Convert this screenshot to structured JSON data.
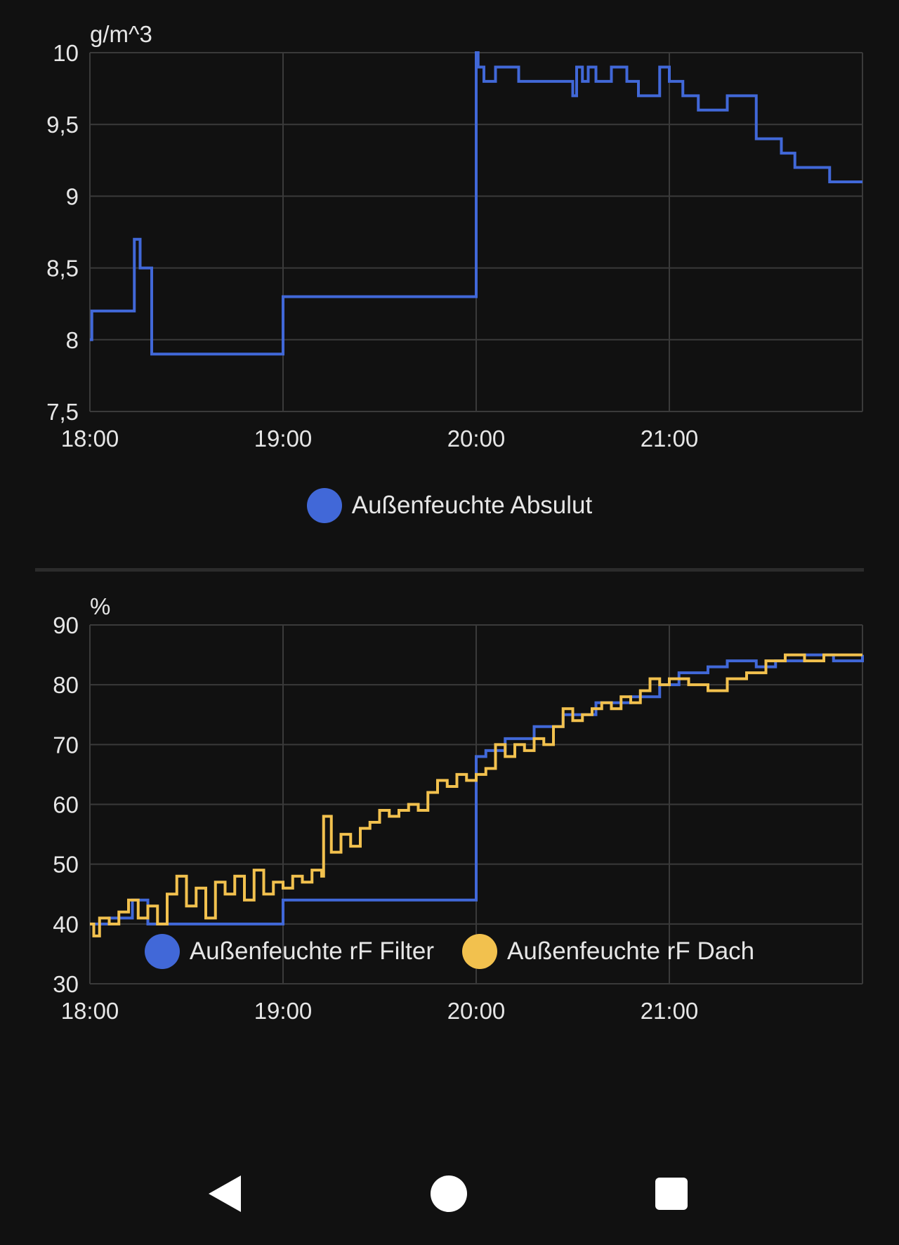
{
  "colors": {
    "background": "#111111",
    "grid": "#3a3a3a",
    "text": "#e6e6e6",
    "blue": "#4168d8",
    "yellow": "#f2c14e"
  },
  "chart_data": [
    {
      "type": "line",
      "unit": "g/m^3",
      "ylim": [
        7.5,
        10
      ],
      "y_ticks": [
        "10",
        "9,5",
        "9",
        "8,5",
        "8",
        "7,5"
      ],
      "x_ticks": [
        "18:00",
        "19:00",
        "20:00",
        "21:00"
      ],
      "xlim_hours": [
        0,
        4
      ],
      "grid": true,
      "legend_position": "bottom-center",
      "series": [
        {
          "name": "Außenfeuchte Absulut",
          "color": "#4168d8",
          "step": true,
          "x": [
            0.0,
            0.01,
            0.23,
            0.26,
            0.32,
            1.0,
            2.0,
            2.01,
            2.04,
            2.1,
            2.22,
            2.3,
            2.5,
            2.52,
            2.55,
            2.58,
            2.62,
            2.7,
            2.78,
            2.84,
            2.95,
            3.0,
            3.07,
            3.15,
            3.3,
            3.45,
            3.58,
            3.65,
            3.83,
            4.0
          ],
          "y": [
            8.0,
            8.2,
            8.7,
            8.5,
            7.9,
            8.3,
            10.0,
            9.9,
            9.8,
            9.9,
            9.8,
            9.8,
            9.7,
            9.9,
            9.8,
            9.9,
            9.8,
            9.9,
            9.8,
            9.7,
            9.9,
            9.8,
            9.7,
            9.6,
            9.7,
            9.4,
            9.3,
            9.2,
            9.1,
            9.1
          ]
        }
      ]
    },
    {
      "type": "line",
      "unit": "%",
      "ylim": [
        30,
        90
      ],
      "y_ticks": [
        "90",
        "80",
        "70",
        "60",
        "50",
        "40",
        "30"
      ],
      "x_ticks": [
        "18:00",
        "19:00",
        "20:00",
        "21:00"
      ],
      "xlim_hours": [
        0,
        4
      ],
      "grid": true,
      "legend_position": "bottom-center",
      "series": [
        {
          "name": "Außenfeuchte rF Filter",
          "color": "#4168d8",
          "step": true,
          "x": [
            0.0,
            0.1,
            0.22,
            0.3,
            1.0,
            2.0,
            2.05,
            2.15,
            2.3,
            2.45,
            2.62,
            2.8,
            2.95,
            3.05,
            3.2,
            3.3,
            3.45,
            3.55,
            3.7,
            3.85,
            4.0
          ],
          "y": [
            40,
            41,
            44,
            40,
            44,
            68,
            69,
            71,
            73,
            75,
            77,
            78,
            80,
            82,
            83,
            84,
            83,
            84,
            85,
            84,
            85
          ]
        },
        {
          "name": "Außenfeuchte rF Dach",
          "color": "#f2c14e",
          "step": true,
          "x": [
            0.0,
            0.02,
            0.05,
            0.1,
            0.15,
            0.2,
            0.25,
            0.3,
            0.35,
            0.4,
            0.45,
            0.5,
            0.55,
            0.6,
            0.65,
            0.7,
            0.75,
            0.8,
            0.85,
            0.9,
            0.95,
            1.0,
            1.05,
            1.1,
            1.15,
            1.2,
            1.21,
            1.25,
            1.3,
            1.35,
            1.4,
            1.45,
            1.5,
            1.55,
            1.6,
            1.65,
            1.7,
            1.75,
            1.8,
            1.85,
            1.9,
            1.95,
            2.0,
            2.05,
            2.1,
            2.15,
            2.2,
            2.25,
            2.3,
            2.35,
            2.4,
            2.45,
            2.5,
            2.55,
            2.6,
            2.65,
            2.7,
            2.75,
            2.8,
            2.85,
            2.9,
            2.95,
            3.0,
            3.1,
            3.2,
            3.3,
            3.4,
            3.5,
            3.6,
            3.7,
            3.8,
            4.0
          ],
          "y": [
            40,
            38,
            41,
            40,
            42,
            44,
            41,
            43,
            40,
            45,
            48,
            43,
            46,
            41,
            47,
            45,
            48,
            44,
            49,
            45,
            47,
            46,
            48,
            47,
            49,
            48,
            58,
            52,
            55,
            53,
            56,
            57,
            59,
            58,
            59,
            60,
            59,
            62,
            64,
            63,
            65,
            64,
            65,
            66,
            70,
            68,
            70,
            69,
            71,
            70,
            73,
            76,
            74,
            75,
            76,
            77,
            76,
            78,
            77,
            79,
            81,
            80,
            81,
            80,
            79,
            81,
            82,
            84,
            85,
            84,
            85,
            85
          ]
        }
      ]
    }
  ],
  "nav": {
    "back_icon": "back-triangle-icon",
    "home_icon": "home-circle-icon",
    "recent_icon": "recent-square-icon"
  }
}
